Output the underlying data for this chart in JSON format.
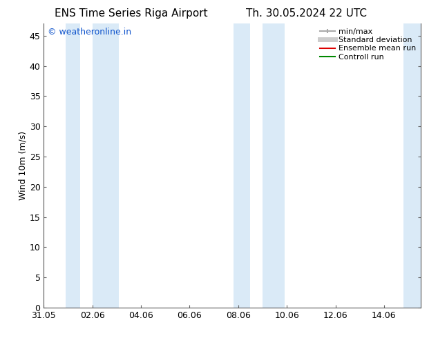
{
  "title_left": "ENS Time Series Riga Airport",
  "title_right": "Th. 30.05.2024 22 UTC",
  "ylabel": "Wind 10m (m/s)",
  "xlabel_ticks": [
    "31.05",
    "02.06",
    "04.06",
    "06.06",
    "08.06",
    "10.06",
    "12.06",
    "14.06"
  ],
  "xtick_positions": [
    0,
    2,
    4,
    6,
    8,
    10,
    12,
    14
  ],
  "xlim": [
    0,
    15.5
  ],
  "ylim": [
    0,
    47
  ],
  "yticks": [
    0,
    5,
    10,
    15,
    20,
    25,
    30,
    35,
    40,
    45
  ],
  "bg_color": "#ffffff",
  "plot_bg_color": "#ffffff",
  "shaded_bands": [
    [
      0.9,
      1.5
    ],
    [
      2.0,
      3.1
    ],
    [
      7.8,
      8.5
    ],
    [
      9.0,
      9.9
    ],
    [
      14.8,
      15.5
    ]
  ],
  "shaded_color": "#daeaf7",
  "watermark_text": "© weatheronline.in",
  "watermark_color": "#1155cc",
  "title_fontsize": 11,
  "axis_label_fontsize": 9,
  "tick_fontsize": 9,
  "watermark_fontsize": 9,
  "legend_fontsize": 8,
  "minmax_color": "#aaaaaa",
  "std_color": "#cccccc",
  "ens_color": "#dd0000",
  "ctrl_color": "#008800"
}
